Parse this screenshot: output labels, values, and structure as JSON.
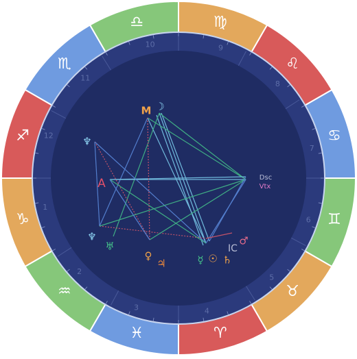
{
  "zodiac_signs": [
    "♋",
    "♌",
    "♍",
    "♎",
    "♏",
    "♐",
    "♑",
    "♒",
    "♓",
    "♈",
    "♉",
    "♊"
  ],
  "houses": [
    "7",
    "8",
    "9",
    "10",
    "11",
    "12",
    "1",
    "2",
    "3",
    "4",
    "5",
    "6"
  ],
  "points": [
    {
      "label": "M"
    },
    {
      "label": "☽"
    },
    {
      "label": "♆"
    },
    {
      "label": "A"
    },
    {
      "label": "Dsc"
    },
    {
      "label": "Vtx"
    },
    {
      "label": "♆"
    },
    {
      "label": "♅"
    },
    {
      "label": "♀"
    },
    {
      "label": "♃"
    },
    {
      "label": "☿"
    },
    {
      "label": "☉"
    },
    {
      "label": "♄"
    },
    {
      "label": "IC"
    },
    {
      "label": "♂"
    }
  ]
}
